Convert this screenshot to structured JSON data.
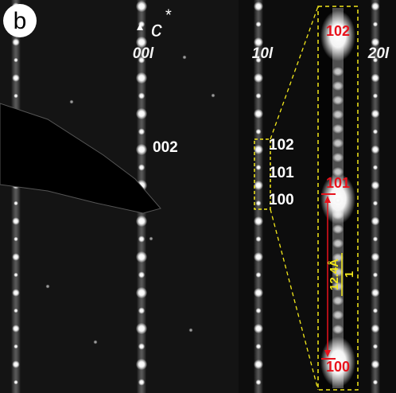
{
  "panel_label": "b",
  "axis_label": {
    "text": "c",
    "superscript": "*"
  },
  "column_labels": [
    "00l",
    "10l",
    "20l"
  ],
  "left_labels": [
    "002"
  ],
  "mid_labels": [
    "102",
    "101",
    "100"
  ],
  "inset_labels": [
    "102",
    "101",
    "100"
  ],
  "scale": {
    "numerator": "1",
    "denominator": "12.4Å"
  }
}
